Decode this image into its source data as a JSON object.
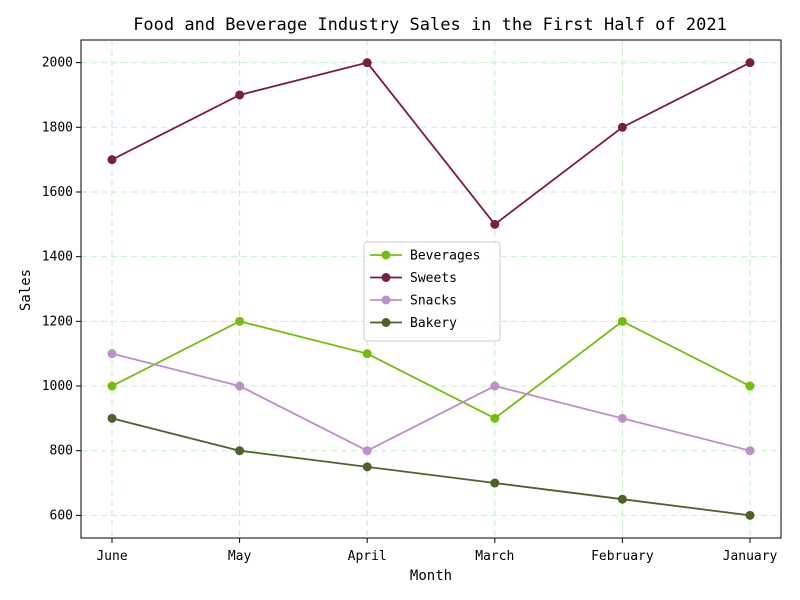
{
  "chart_data": {
    "type": "line",
    "title": "Food and Beverage Industry Sales in the First Half of 2021",
    "xlabel": "Month",
    "ylabel": "Sales",
    "categories": [
      "June",
      "May",
      "April",
      "March",
      "February",
      "January"
    ],
    "ylim": [
      530,
      2070
    ],
    "yticks": [
      600,
      800,
      1000,
      1200,
      1400,
      1600,
      1800,
      2000
    ],
    "grid": true,
    "legend_position": "center",
    "series": [
      {
        "name": "Beverages",
        "color": "#72be0e",
        "values": [
          1000,
          1200,
          1100,
          900,
          1200,
          1000
        ]
      },
      {
        "name": "Sweets",
        "color": "#7b1c42",
        "values": [
          1700,
          1900,
          2000,
          1500,
          1800,
          2000
        ]
      },
      {
        "name": "Snacks",
        "color": "#bf8fcc",
        "values": [
          1100,
          1000,
          800,
          1000,
          900,
          800
        ]
      },
      {
        "name": "Bakery",
        "color": "#4e6128",
        "values": [
          900,
          800,
          750,
          700,
          650,
          600
        ]
      }
    ]
  }
}
